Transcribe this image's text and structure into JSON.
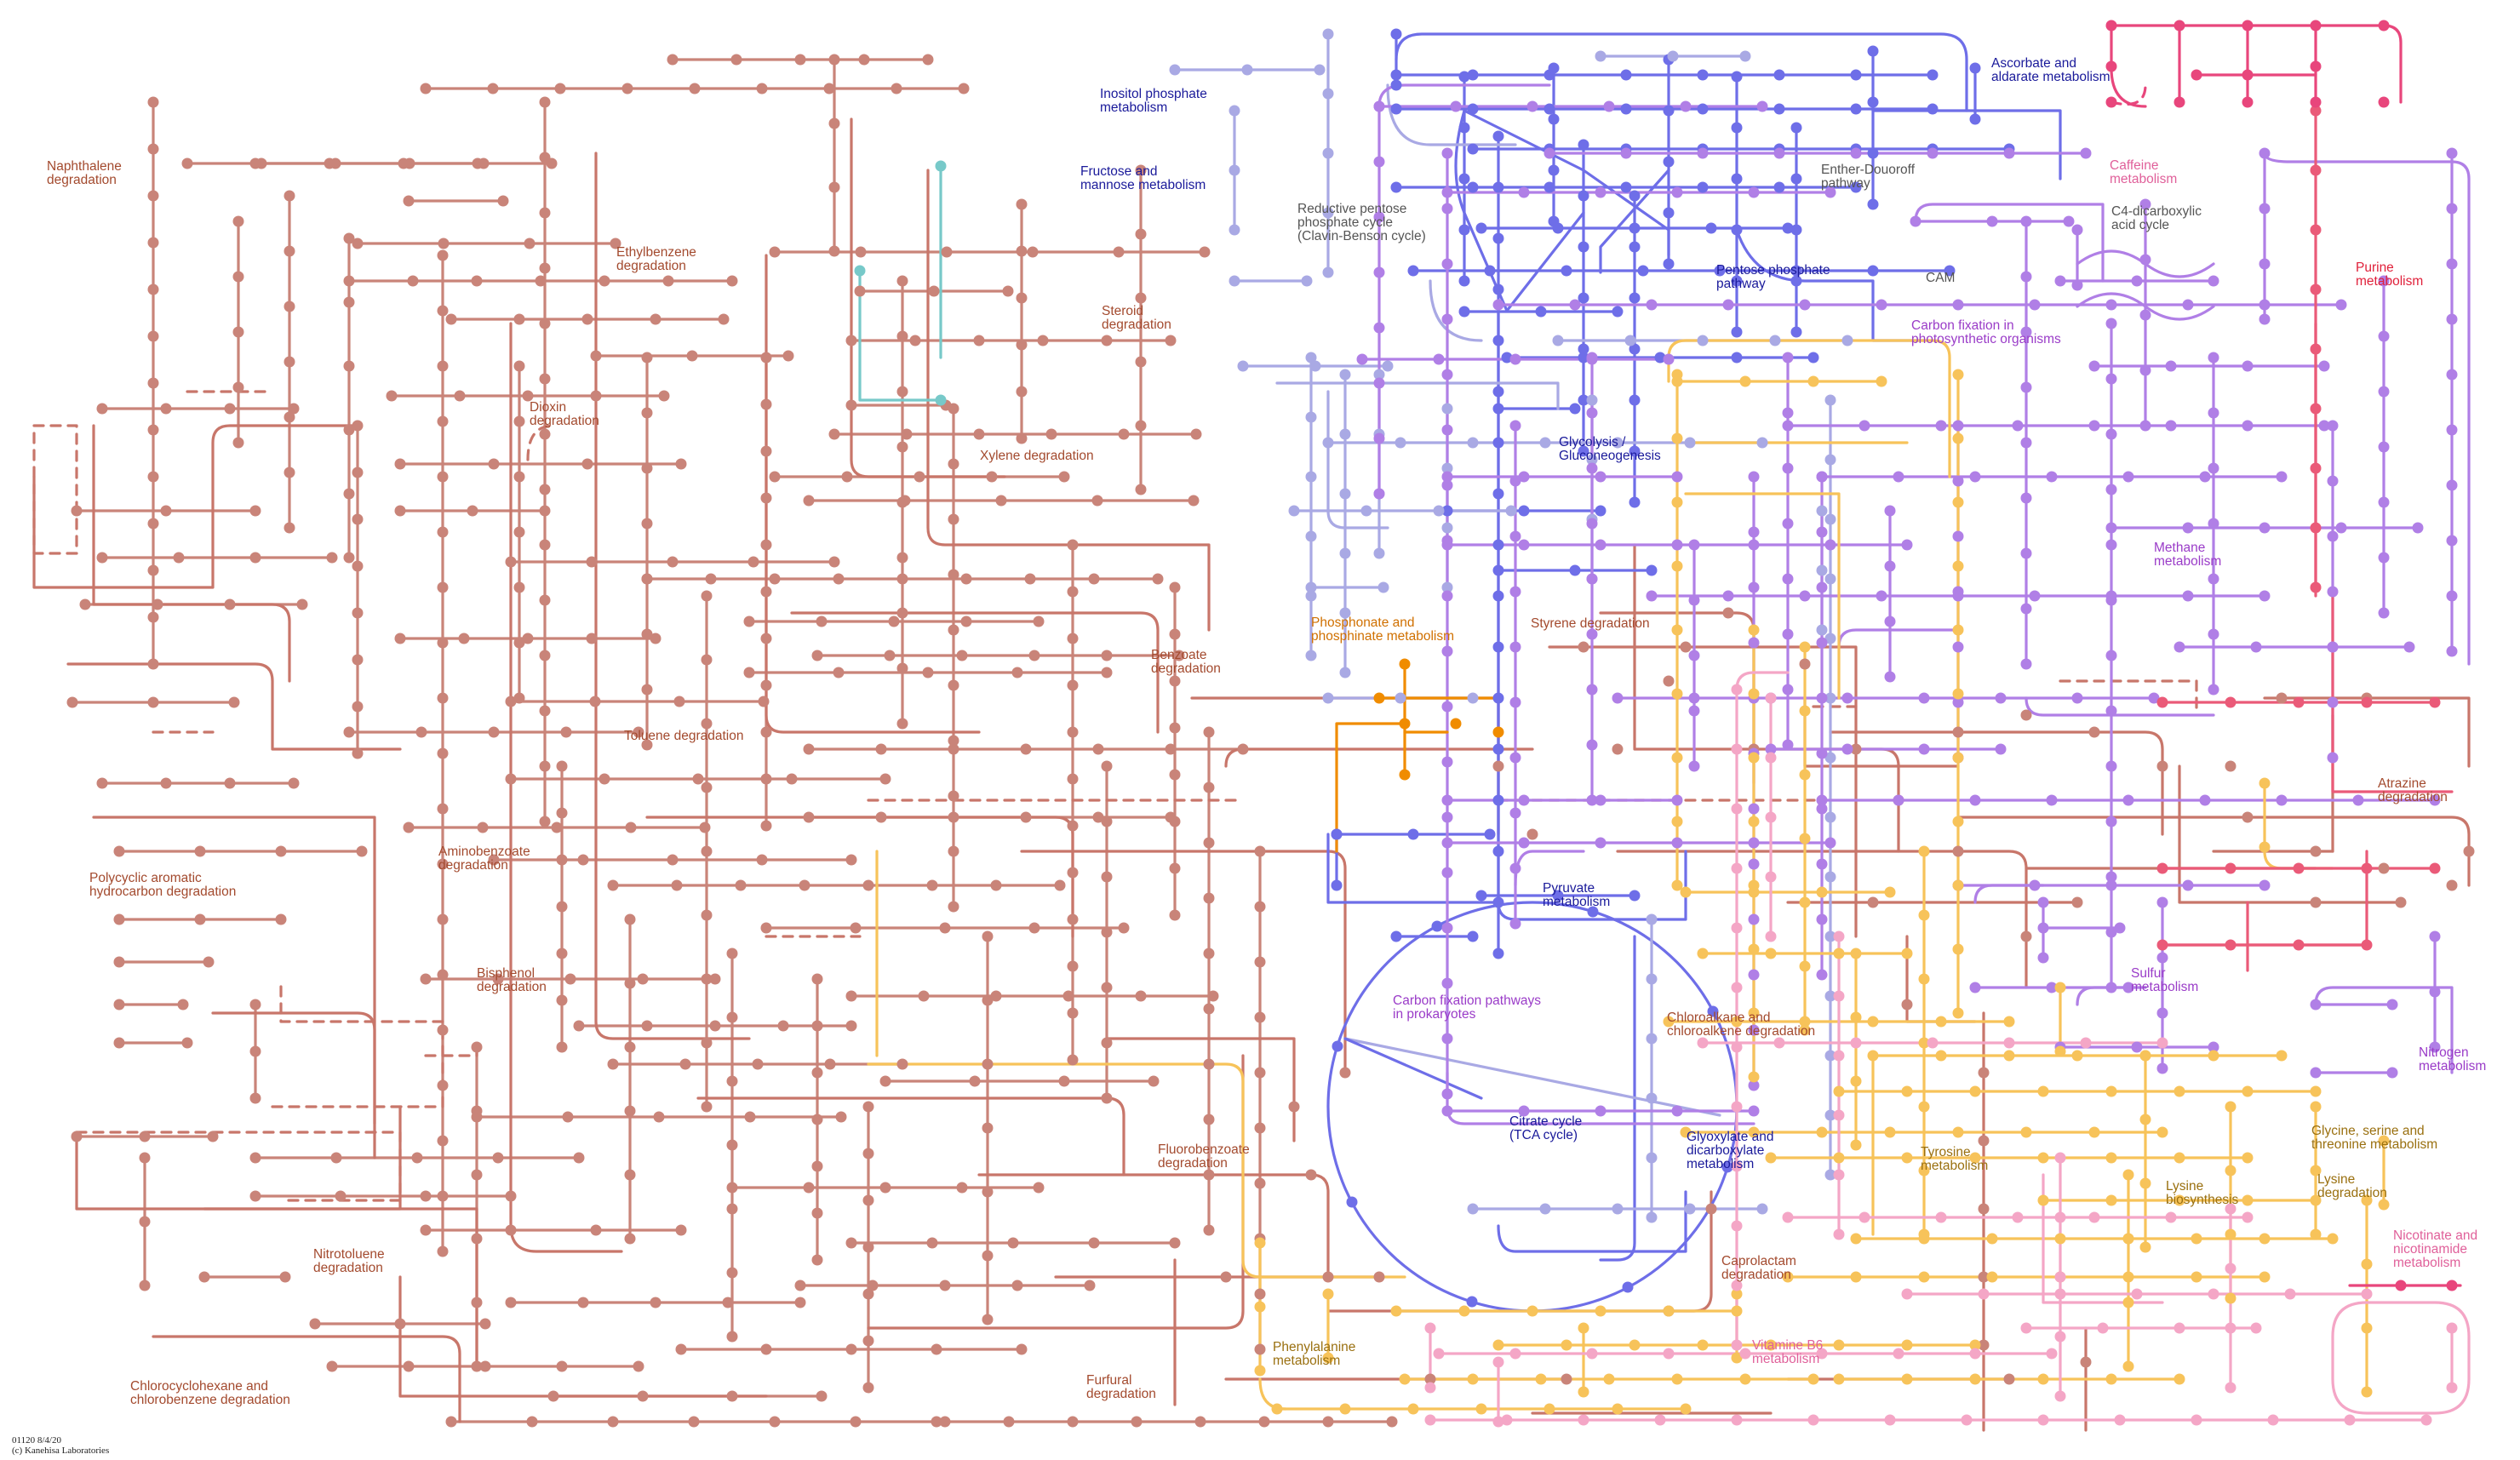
{
  "map_labels": {
    "naphthalene": "Naphthalene\ndegradation",
    "ethylbenzene": "Ethylbenzene\ndegradation",
    "dioxin": "Dioxin\ndegradation",
    "steroid": "Steroid\ndegradation",
    "xylene": "Xylene degradation",
    "benzoate": "Benzoate\ndegradation",
    "toluene": "Toluene degradation",
    "aminobenzoate": "Aminobenzoate\ndegradation",
    "pah": "Polycyclic aromatic\nhydrocarbon degradation",
    "bisphenol": "Bisphenol\ndegradation",
    "nitrotoluene": "Nitrotoluene\ndegradation",
    "chlorocyclohexane": "Chlorocyclohexane and\nchlorobenzene degradation",
    "furfural": "Furfural\ndegradation",
    "fluorobenzoate": "Fluorobenzoate\ndegradation",
    "phosphonate": "Phosphonate and\nphosphinate metabolism",
    "styrene": "Styrene degradation",
    "chloroalkane": "Chloroalkane and\nchloroalkene degradation",
    "caprolactam": "Caprolactam\ndegradation",
    "phenylalanine": "Phenylalanine\nmetabolism",
    "tyrosine": "Tyrosine\nmetabolism",
    "inositol": "Inositol phosphate\nmetabolism",
    "fructose": "Fructose and\nmannose metabolism",
    "ascorbate": "Ascorbate and\naldarate metabolism",
    "pentose": "Pentose phosphate\npathway",
    "glycolysis": "Glycolysis /\nGluconeogenesis",
    "pyruvate": "Pyruvate\nmetabolism",
    "citrate": "Citrate cycle\n(TCA cycle)",
    "glyoxylate": "Glyoxylate and\ndicarboxylate\nmetabolism",
    "reductive_pentose": "Reductive pentose\nphosphate cycle\n(Clavin-Benson cycle)",
    "entner": "Enther-Douoroff\npathway",
    "c4": "C4-dicarboxylic\nacid cycle",
    "cam": "CAM",
    "carbon_fixation_photo": "Carbon fixation in\nphotosynthetic organisms",
    "carbon_fixation_prok": "Carbon fixation pathways\nin prokaryotes",
    "methane": "Methane\nmetabolism",
    "sulfur": "Sulfur\nmetabolism",
    "nitrogen": "Nitrogen\nmetabolism",
    "caffeine": "Caffeine\nmetabolism",
    "purine": "Purine\nmetabolism",
    "atrazine": "Atrazine\ndegradation",
    "glycine": "Glycine, serine and\nthreonine metabolism",
    "lysine_bio": "Lysine\nbiosynthesis",
    "lysine_deg": "Lysine\ndegradation",
    "nicotinate": "Nicotinate and\nnicotinamide\nmetabolism",
    "vitamin_b6": "Vitamine B6\nmetabolism"
  },
  "footer": {
    "map_id": "01120 8/4/20",
    "copyright": "(c) Kanehisa Laboratories"
  },
  "colors": {
    "xenobiotics": "#c8766a",
    "xenobiotics_node": "#c98479",
    "carbohydrate": "#6e6ee8",
    "carbohydrate_light": "#a9a9e4",
    "energy": "#b07fe6",
    "amino_acid": "#f7c35a",
    "cofactor": "#f4a6c6",
    "nucleotide": "#ea5a78",
    "caffeine": "#e8467c",
    "phosphonate": "#f08c00",
    "lipid": "#77c9c9",
    "text_carbohydrate": "#1a1a9a",
    "text_energy": "#9a3cc8",
    "text_xenobiotics": "#a34a2e",
    "text_amino": "#9a7010",
    "text_cofactor": "#e0609a",
    "text_nucleotide": "#e0203a"
  }
}
